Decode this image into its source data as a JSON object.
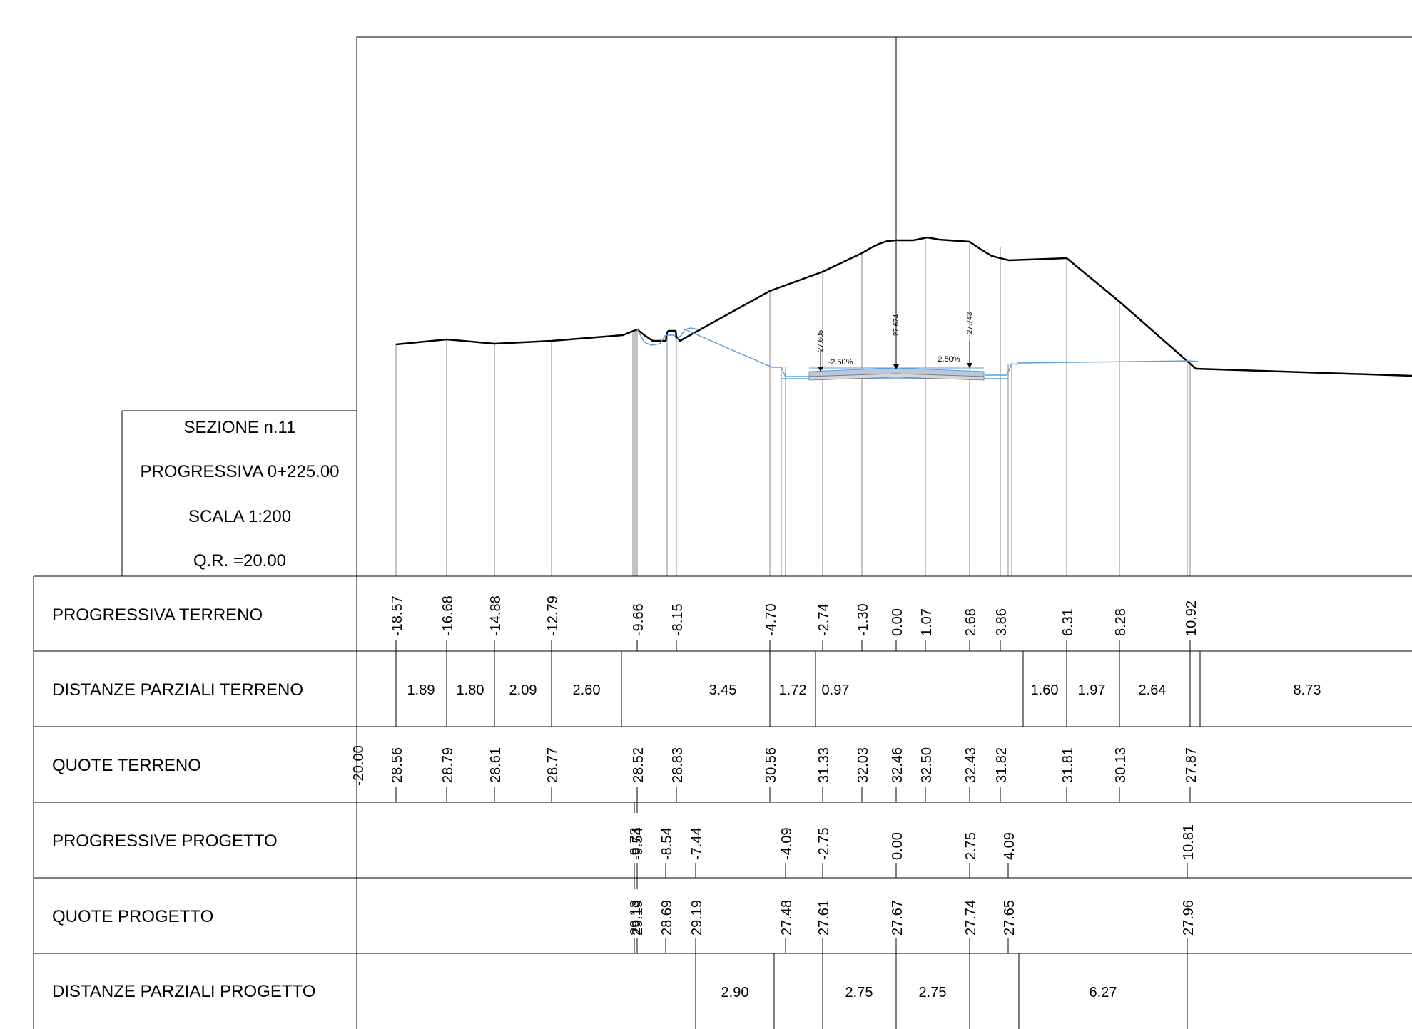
{
  "info": {
    "sezione": "SEZIONE  n.11",
    "progressiva": "PROGRESSIVA 0+225.00",
    "scala": "SCALA 1:200",
    "qr": "Q.R. =20.00"
  },
  "rows": {
    "prog_terreno": {
      "label": "PROGRESSIVA TERRENO",
      "values": [
        "-18.57",
        "-16.68",
        "-14.88",
        "-12.79",
        "-9.66",
        "-8.15",
        "-4.70",
        "-2.74",
        "-1.30",
        "0.00",
        "1.07",
        "2.68",
        "3.86",
        "6.31",
        "8.28",
        "10.92"
      ]
    },
    "dist_terreno": {
      "label": "DISTANZE PARZIALI TERRENO",
      "values": [
        "1.89",
        "1.80",
        "2.09",
        "2.60",
        "3.45",
        "1.72",
        "0.97",
        "1.60",
        "1.97",
        "2.64",
        "8.73"
      ]
    },
    "quote_terreno": {
      "label": "QUOTE TERRENO",
      "ref": "-20.00",
      "values": [
        "28.56",
        "28.79",
        "28.61",
        "28.77",
        "28.52",
        "28.83",
        "30.56",
        "31.33",
        "32.03",
        "32.46",
        "32.50",
        "32.43",
        "31.82",
        "31.81",
        "30.13",
        "27.87"
      ]
    },
    "prog_progetto": {
      "label": "PROGRESSIVE PROGETTO",
      "values": [
        "-9.73",
        "-9.54",
        "-8.54",
        "-7.44",
        "-4.09",
        "-2.75",
        "0.00",
        "2.75",
        "4.09",
        "10.81"
      ]
    },
    "quote_progetto": {
      "label": "QUOTE PROGETTO",
      "values": [
        "29.13",
        "29.19",
        "28.69",
        "29.19",
        "27.48",
        "27.61",
        "27.67",
        "27.74",
        "27.65",
        "27.96"
      ]
    },
    "dist_progetto": {
      "label": "DISTANZE PARZIALI PROGETTO",
      "values": [
        "2.90",
        "2.75",
        "2.75",
        "6.27"
      ]
    }
  },
  "annotations": {
    "elev_left": "27.605",
    "elev_center": "27.674",
    "elev_right": "27.743",
    "slope_left": "-2.50%",
    "slope_right": "2.50%"
  }
}
